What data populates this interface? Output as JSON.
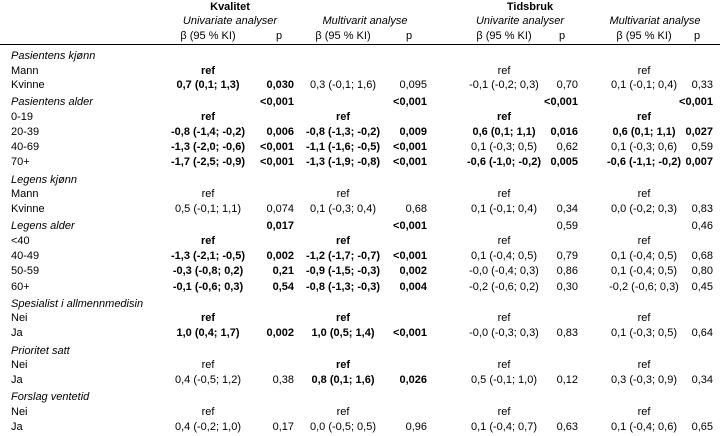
{
  "header": {
    "groups": [
      "Kvalitet",
      "Tidsbruk"
    ],
    "models": [
      "Univariate analyser",
      "Multivarit analyse",
      "Univarite analyser",
      "Multivariat analyse"
    ],
    "beta_label": "β (95 % KI)",
    "p_label": "p"
  },
  "rows": [
    {
      "label": "Pasientens kjønn",
      "section": true,
      "vals": [
        "",
        "",
        "",
        "",
        "",
        "",
        "",
        ""
      ],
      "bold": []
    },
    {
      "label": "Mann",
      "vals": [
        "ref",
        "",
        "",
        "",
        "ref",
        "",
        "ref",
        ""
      ],
      "bold": [
        0
      ]
    },
    {
      "label": "Kvinne",
      "vals": [
        "0,7 (0,1; 1,3)",
        "0,030",
        "0,3 (-0,1; 1,6)",
        "0,095",
        "-0,1 (-0,2; 0,3)",
        "0,70",
        "0,1 (-0,1; 0,4)",
        "0,33"
      ],
      "bold": [
        0,
        1
      ]
    },
    {
      "label": "Pasientens alder",
      "section": true,
      "vals": [
        "",
        "<0,001",
        "",
        "<0,001",
        "",
        "<0,001",
        "",
        "<0,001"
      ],
      "bold": [
        1,
        3,
        5,
        7
      ]
    },
    {
      "label": "0-19",
      "vals": [
        "ref",
        "",
        "ref",
        "",
        "ref",
        "",
        "ref",
        ""
      ],
      "bold": [
        0,
        2,
        4,
        6
      ]
    },
    {
      "label": "20-39",
      "vals": [
        "-0,8 (-1,4; -0,2)",
        "0,006",
        "-0,8 (-1,3; -0,2)",
        "0,009",
        "0,6 (0,1; 1,1)",
        "0,016",
        "0,6 (0,1; 1,1)",
        "0,027"
      ],
      "bold": [
        0,
        1,
        2,
        3,
        4,
        5,
        6,
        7
      ]
    },
    {
      "label": "40-69",
      "vals": [
        "-1,3 (-2,0; -0,6)",
        "<0,001",
        "-1,1 (-1,6; -0,5)",
        "<0,001",
        "0,1 (-0,3; 0,5)",
        "0,62",
        "0,1 (-0,3; 0,6)",
        "0,59"
      ],
      "bold": [
        0,
        1,
        2,
        3
      ]
    },
    {
      "label": "70+",
      "vals": [
        "-1,7 (-2,5; -0,9)",
        "<0,001",
        "-1,3 (-1,9; -0,8)",
        "<0,001",
        "-0,6 (-1,0; -0,2)",
        "0,005",
        "-0,6 (-1,1; -0,2)",
        "0,007"
      ],
      "bold": [
        0,
        1,
        2,
        3,
        4,
        5,
        6,
        7
      ]
    },
    {
      "label": "Legens kjønn",
      "section": true,
      "vals": [
        "",
        "",
        "",
        "",
        "",
        "",
        "",
        ""
      ],
      "bold": []
    },
    {
      "label": "Mann",
      "vals": [
        "ref",
        "",
        "ref",
        "",
        "ref",
        "",
        "ref",
        ""
      ],
      "bold": []
    },
    {
      "label": "Kvinne",
      "vals": [
        "0,5 (-0,1; 1,1)",
        "0,074",
        "0,1 (-0,3; 0,4)",
        "0,68",
        "0,1 (-0,1; 0,4)",
        "0,34",
        "0,0 (-0,2; 0,3)",
        "0,83"
      ],
      "bold": []
    },
    {
      "label": "Legens alder",
      "section": true,
      "vals": [
        "",
        "0,017",
        "",
        "<0,001",
        "",
        "0,59",
        "",
        "0,46"
      ],
      "bold": [
        1,
        3
      ]
    },
    {
      "label": "<40",
      "vals": [
        "ref",
        "",
        "ref",
        "",
        "ref",
        "",
        "ref",
        ""
      ],
      "bold": [
        0,
        2
      ]
    },
    {
      "label": "40-49",
      "vals": [
        "-1,3 (-2,1; -0,5)",
        "0,002",
        "-1,2 (-1,7; -0,7)",
        "<0,001",
        "0,1 (-0,4; 0,5)",
        "0,79",
        "0,1 (-0,4; 0,5)",
        "0,68"
      ],
      "bold": [
        0,
        1,
        2,
        3
      ]
    },
    {
      "label": "50-59",
      "vals": [
        "-0,3 (-0,8; 0,2)",
        "0,21",
        "-0,9 (-1,5; -0,3)",
        "0,002",
        "-0,0 (-0,4; 0,3)",
        "0,86",
        "0,1 (-0,4; 0,5)",
        "0,80"
      ],
      "bold": [
        0,
        1,
        2,
        3
      ]
    },
    {
      "label": "60+",
      "vals": [
        "-0,1 (-0,6; 0,3)",
        "0,54",
        "-0,8 (-1,3; -0,3)",
        "0,004",
        "-0,2 (-0,6; 0,2)",
        "0,30",
        "-0,2 (-0,6; 0,3)",
        "0,45"
      ],
      "bold": [
        0,
        1,
        2,
        3
      ]
    },
    {
      "label": "Spesialist i allmennmedisin",
      "section": true,
      "vals": [
        "",
        "",
        "",
        "",
        "",
        "",
        "",
        ""
      ],
      "bold": []
    },
    {
      "label": "Nei",
      "vals": [
        "ref",
        "",
        "ref",
        "",
        "ref",
        "",
        "ref",
        ""
      ],
      "bold": [
        0,
        2
      ]
    },
    {
      "label": "Ja",
      "vals": [
        "1,0 (0,4; 1,7)",
        "0,002",
        "1,0 (0,5; 1,4)",
        "<0,001",
        "-0,0 (-0,3; 0,3)",
        "0,83",
        "0,1 (-0,3; 0,5)",
        "0,64"
      ],
      "bold": [
        0,
        1,
        2,
        3
      ]
    },
    {
      "label": "Prioritet satt",
      "section": true,
      "vals": [
        "",
        "",
        "",
        "",
        "",
        "",
        "",
        ""
      ],
      "bold": []
    },
    {
      "label": "Nei",
      "vals": [
        "ref",
        "",
        "ref",
        "",
        "ref",
        "",
        "ref",
        ""
      ],
      "bold": [
        2
      ]
    },
    {
      "label": "Ja",
      "vals": [
        "0,4 (-0,5; 1,2)",
        "0,38",
        "0,8 (0,1; 1,6)",
        "0,026",
        "0,5 (-0,1; 1,0)",
        "0,12",
        "0,3 (-0,3; 0,9)",
        "0,34"
      ],
      "bold": [
        2,
        3
      ]
    },
    {
      "label": "Forslag ventetid",
      "section": true,
      "vals": [
        "",
        "",
        "",
        "",
        "",
        "",
        "",
        ""
      ],
      "bold": []
    },
    {
      "label": "Nei",
      "vals": [
        "ref",
        "",
        "ref",
        "",
        "ref",
        "",
        "ref",
        ""
      ],
      "bold": []
    },
    {
      "label": "Ja",
      "vals": [
        "0,4 (-0,2; 1,0)",
        "0,17",
        "0,0 (-0,5; 0,5)",
        "0,96",
        "0,1 (-0,4; 0,7)",
        "0,63",
        "0,1 (-0,4; 0,6)",
        "0,65"
      ],
      "bold": []
    }
  ]
}
